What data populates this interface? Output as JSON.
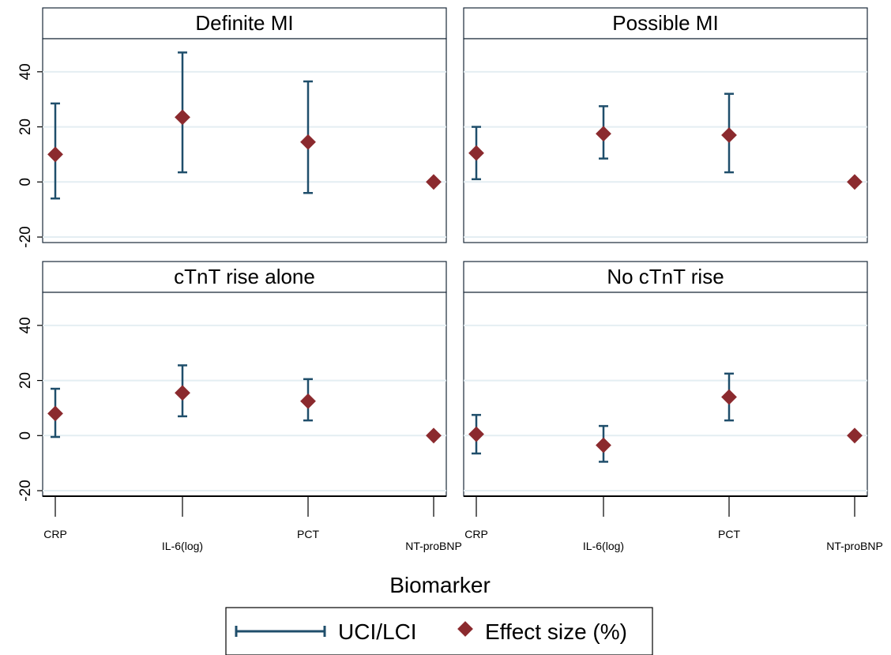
{
  "chart_data": {
    "type": "scatter",
    "subtype": "error-bar-panels",
    "xlabel": "Biomarker",
    "ylabel": "",
    "categories": [
      "CRP",
      "IL-6(log)",
      "PCT",
      "NT-proBNP"
    ],
    "yticks": [
      -20,
      0,
      20,
      40
    ],
    "ylim": [
      -22,
      52
    ],
    "grid": true,
    "legend": {
      "position": "bottom",
      "entries": [
        {
          "label": "UCI/LCI",
          "marker": "error-bar",
          "color": "#1f4e6b"
        },
        {
          "label": "Effect size (%)",
          "marker": "diamond",
          "color": "#8b2a2e"
        }
      ]
    },
    "colors": {
      "errorbar": "#1f4e6b",
      "point": "#8b2a2e",
      "grid": "#e4eef2",
      "title_bg": "#ffffff",
      "frame": "#1a2a3a"
    },
    "panels": [
      {
        "title": "Definite MI",
        "estimates": [
          10,
          23.5,
          14.5,
          0
        ],
        "lci": [
          -6,
          3.5,
          -4,
          null
        ],
        "uci": [
          28.5,
          47,
          36.5,
          null
        ]
      },
      {
        "title": "Possible MI",
        "estimates": [
          10.5,
          17.5,
          17,
          0
        ],
        "lci": [
          1,
          8.5,
          3.5,
          null
        ],
        "uci": [
          20,
          27.5,
          32,
          null
        ]
      },
      {
        "title": "cTnT rise alone",
        "estimates": [
          8,
          15.5,
          12.5,
          0
        ],
        "lci": [
          -0.5,
          7,
          5.5,
          null
        ],
        "uci": [
          17,
          25.5,
          20.5,
          null
        ]
      },
      {
        "title": "No cTnT rise",
        "estimates": [
          0.5,
          -3.5,
          14,
          0
        ],
        "lci": [
          -6.5,
          -9.5,
          5.5,
          null
        ],
        "uci": [
          7.5,
          3.5,
          22.5,
          null
        ]
      }
    ]
  }
}
